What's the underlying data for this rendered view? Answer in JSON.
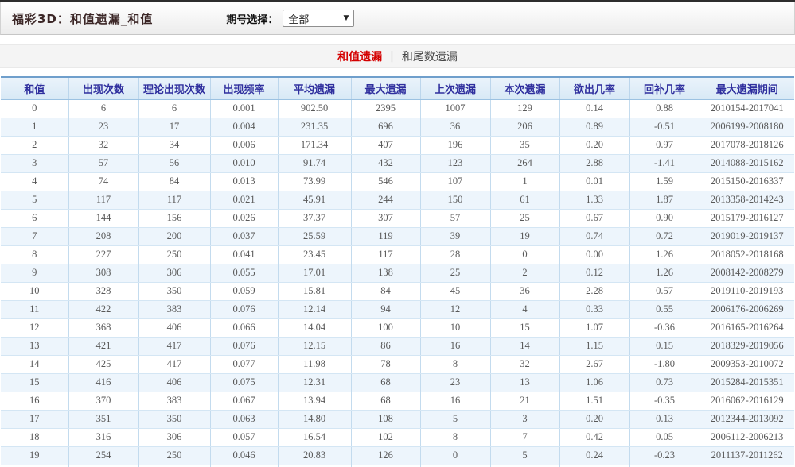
{
  "header": {
    "title": "福彩3D：和值遗漏_和值",
    "period_label": "期号选择：",
    "period_value": "全部",
    "dropdown_arrow": "▼"
  },
  "tabs": [
    {
      "label": "和值遗漏",
      "active": true
    },
    {
      "label": "和尾数遗漏",
      "active": false
    }
  ],
  "tab_separator": "|",
  "colors": {
    "active_tab_red": "#d40000",
    "table_header_text": "#2f2f9e",
    "table_border_blue": "#6f9fcc",
    "row_stripe_blue": "#edf5fc",
    "top_strip": "#2e2e2e"
  },
  "table": {
    "columns": [
      "和值",
      "出现次数",
      "理论出现次数",
      "出现频率",
      "平均遗漏",
      "最大遗漏",
      "上次遗漏",
      "本次遗漏",
      "欲出几率",
      "回补几率",
      "最大遗漏期间"
    ],
    "rows": [
      [
        "0",
        "6",
        "6",
        "0.001",
        "902.50",
        "2395",
        "1007",
        "129",
        "0.14",
        "0.88",
        "2010154-2017041"
      ],
      [
        "1",
        "23",
        "17",
        "0.004",
        "231.35",
        "696",
        "36",
        "206",
        "0.89",
        "-0.51",
        "2006199-2008180"
      ],
      [
        "2",
        "32",
        "34",
        "0.006",
        "171.34",
        "407",
        "196",
        "35",
        "0.20",
        "0.97",
        "2017078-2018126"
      ],
      [
        "3",
        "57",
        "56",
        "0.010",
        "91.74",
        "432",
        "123",
        "264",
        "2.88",
        "-1.41",
        "2014088-2015162"
      ],
      [
        "4",
        "74",
        "84",
        "0.013",
        "73.99",
        "546",
        "107",
        "1",
        "0.01",
        "1.59",
        "2015150-2016337"
      ],
      [
        "5",
        "117",
        "117",
        "0.021",
        "45.91",
        "244",
        "150",
        "61",
        "1.33",
        "1.87",
        "2013358-2014243"
      ],
      [
        "6",
        "144",
        "156",
        "0.026",
        "37.37",
        "307",
        "57",
        "25",
        "0.67",
        "0.90",
        "2015179-2016127"
      ],
      [
        "7",
        "208",
        "200",
        "0.037",
        "25.59",
        "119",
        "39",
        "19",
        "0.74",
        "0.72",
        "2019019-2019137"
      ],
      [
        "8",
        "227",
        "250",
        "0.041",
        "23.45",
        "117",
        "28",
        "0",
        "0.00",
        "1.26",
        "2018052-2018168"
      ],
      [
        "9",
        "308",
        "306",
        "0.055",
        "17.01",
        "138",
        "25",
        "2",
        "0.12",
        "1.26",
        "2008142-2008279"
      ],
      [
        "10",
        "328",
        "350",
        "0.059",
        "15.81",
        "84",
        "45",
        "36",
        "2.28",
        "0.57",
        "2019110-2019193"
      ],
      [
        "11",
        "422",
        "383",
        "0.076",
        "12.14",
        "94",
        "12",
        "4",
        "0.33",
        "0.55",
        "2006176-2006269"
      ],
      [
        "12",
        "368",
        "406",
        "0.066",
        "14.04",
        "100",
        "10",
        "15",
        "1.07",
        "-0.36",
        "2016165-2016264"
      ],
      [
        "13",
        "421",
        "417",
        "0.076",
        "12.15",
        "86",
        "16",
        "14",
        "1.15",
        "0.15",
        "2018329-2019056"
      ],
      [
        "14",
        "425",
        "417",
        "0.077",
        "11.98",
        "78",
        "8",
        "32",
        "2.67",
        "-1.80",
        "2009353-2010072"
      ],
      [
        "15",
        "416",
        "406",
        "0.075",
        "12.31",
        "68",
        "23",
        "13",
        "1.06",
        "0.73",
        "2015284-2015351"
      ],
      [
        "16",
        "370",
        "383",
        "0.067",
        "13.94",
        "68",
        "16",
        "21",
        "1.51",
        "-0.35",
        "2016062-2016129"
      ],
      [
        "17",
        "351",
        "350",
        "0.063",
        "14.80",
        "108",
        "5",
        "3",
        "0.20",
        "0.13",
        "2012344-2013092"
      ],
      [
        "18",
        "316",
        "306",
        "0.057",
        "16.54",
        "102",
        "8",
        "7",
        "0.42",
        "0.05",
        "2006112-2006213"
      ],
      [
        "19",
        "254",
        "250",
        "0.046",
        "20.83",
        "126",
        "0",
        "5",
        "0.24",
        "-0.23",
        "2011137-2011262"
      ]
    ]
  }
}
